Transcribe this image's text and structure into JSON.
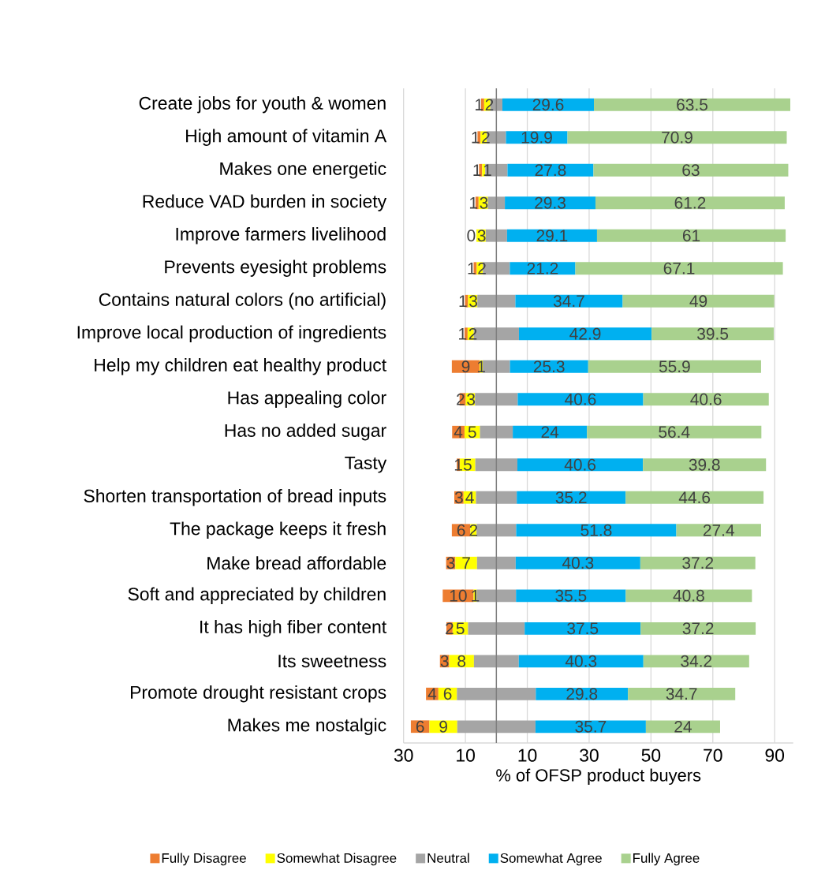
{
  "chart_data": {
    "type": "bar",
    "orientation": "horizontal",
    "xlabel": "% of OFSP product buyers",
    "categories": [
      "Create jobs for youth & women",
      "High amount of vitamin A",
      "Makes one energetic",
      "Reduce VAD burden in society",
      "Improve farmers livelihood",
      "Prevents eyesight problems",
      "Contains natural colors (no artificial)",
      "Improve local production of ingredients",
      "Help my children eat healthy product",
      "Has appealing color",
      "Has no added sugar",
      "Tasty",
      "Shorten transportation of bread inputs",
      "The package keeps it fresh",
      "Make bread affordable",
      "Soft and appreciated by children",
      "It has high fiber content",
      "Its sweetness",
      "Promote drought resistant crops",
      "Makes me nostalgic"
    ],
    "series": [
      {
        "name": "Fully Disagree",
        "color": "#ed7d31",
        "values": [
          1,
          1,
          1,
          1,
          0,
          1,
          1,
          1,
          9,
          2,
          4,
          1,
          3,
          6,
          3,
          10,
          2,
          3,
          4,
          6
        ],
        "base": [
          -4.95,
          -6.1,
          -5.6,
          -6.75,
          null,
          -7.35,
          -10.15,
          -10.3,
          -14.4,
          -11.9,
          -14.3,
          -12.8,
          -13.6,
          -14.4,
          -16.25,
          -17.35,
          -16.15,
          -18.25,
          -22.75,
          -27.65
        ],
        "value_labels": [
          "1",
          "1",
          "1",
          "1",
          "0",
          "1",
          "1",
          "1",
          "9",
          "2",
          "4",
          "1",
          "3",
          "6",
          "3",
          "10",
          "2",
          "3",
          "4",
          "6"
        ]
      },
      {
        "name": "Somewhat Disagree",
        "color": "#ffff00",
        "values": [
          2,
          2,
          1,
          3,
          3,
          2,
          3,
          2,
          1,
          3,
          5,
          5,
          4,
          2,
          7,
          1,
          5,
          8,
          6,
          9
        ],
        "base": [
          -3.95,
          -5.1,
          -4.6,
          -5.75,
          -6.45,
          -6.35,
          -9.15,
          -9.3,
          -5.4,
          -9.9,
          -10.3,
          -11.8,
          -10.6,
          -8.4,
          -13.25,
          -7.35,
          -14.15,
          -15.25,
          -18.75,
          -21.65
        ],
        "value_labels": [
          "2",
          "2",
          "1",
          "3",
          "3",
          "2",
          "3",
          "2",
          "1",
          "3",
          "5",
          "5",
          "4",
          "2",
          "7",
          "1",
          "5",
          "8",
          "6",
          "9"
        ]
      },
      {
        "name": "Neutral",
        "color": "#a5a5a5",
        "values": [
          3.9,
          6.2,
          7.2,
          5.5,
          6.9,
          8.7,
          12.3,
          14.6,
          8.8,
          13.8,
          10.6,
          13.6,
          13.2,
          12.8,
          12.5,
          12.7,
          18.3,
          14.5,
          25.5,
          25.3
        ],
        "base": [
          -1.95,
          -3.1,
          -3.6,
          -2.75,
          -3.45,
          -4.35,
          -6.15,
          -7.3,
          -4.4,
          -6.9,
          -5.3,
          -6.8,
          -6.6,
          -6.4,
          -6.25,
          -6.35,
          -9.15,
          -7.25,
          -12.75,
          -12.65
        ]
      },
      {
        "name": "Somewhat Agree",
        "color": "#00b0f0",
        "values": [
          29.6,
          19.9,
          27.8,
          29.3,
          29.1,
          21.2,
          34.7,
          42.9,
          25.3,
          40.6,
          24,
          40.6,
          35.2,
          51.8,
          40.3,
          35.5,
          37.5,
          40.3,
          29.8,
          35.7
        ],
        "base": [
          1.95,
          3.1,
          3.6,
          2.75,
          3.45,
          4.35,
          6.15,
          7.3,
          4.4,
          6.9,
          5.3,
          6.8,
          6.6,
          6.4,
          6.25,
          6.35,
          9.15,
          7.25,
          12.75,
          12.65
        ],
        "value_labels": [
          "29.6",
          "19.9",
          "27.8",
          "29.3",
          "29.1",
          "21.2",
          "34.7",
          "42.9",
          "25.3",
          "40.6",
          "24",
          "40.6",
          "35.2",
          "51.8",
          "40.3",
          "35.5",
          "37.5",
          "40.3",
          "29.8",
          "35.7"
        ]
      },
      {
        "name": "Fully Agree",
        "color": "#a9d18e",
        "values": [
          63.5,
          70.9,
          63,
          61.2,
          61,
          67.1,
          49,
          39.5,
          55.9,
          40.6,
          56.4,
          39.8,
          44.6,
          27.4,
          37.2,
          40.8,
          37.2,
          34.2,
          34.7,
          24
        ],
        "base": [
          31.55,
          23.0,
          31.4,
          32.05,
          32.55,
          25.55,
          40.85,
          50.2,
          29.7,
          47.5,
          29.3,
          47.4,
          41.8,
          58.2,
          46.55,
          41.85,
          46.65,
          47.55,
          42.55,
          48.35
        ],
        "value_labels": [
          "63.5",
          "70.9",
          "63",
          "61.2",
          "61",
          "67.1",
          "49",
          "39.5",
          "55.9",
          "40.6",
          "56.4",
          "39.8",
          "44.6",
          "27.4",
          "37.2",
          "40.8",
          "37.2",
          "34.2",
          "34.7",
          "24"
        ]
      }
    ],
    "xlim": [
      -30,
      96
    ],
    "xticks": [
      {
        "value": -30,
        "label": "30"
      },
      {
        "value": -10,
        "label": "10"
      },
      10,
      30,
      50,
      70,
      90
    ],
    "grid": "x",
    "ref_lines": [
      {
        "axis": "x",
        "value": 0,
        "color": "#7f7f7f"
      }
    ],
    "legend": "bottom"
  }
}
